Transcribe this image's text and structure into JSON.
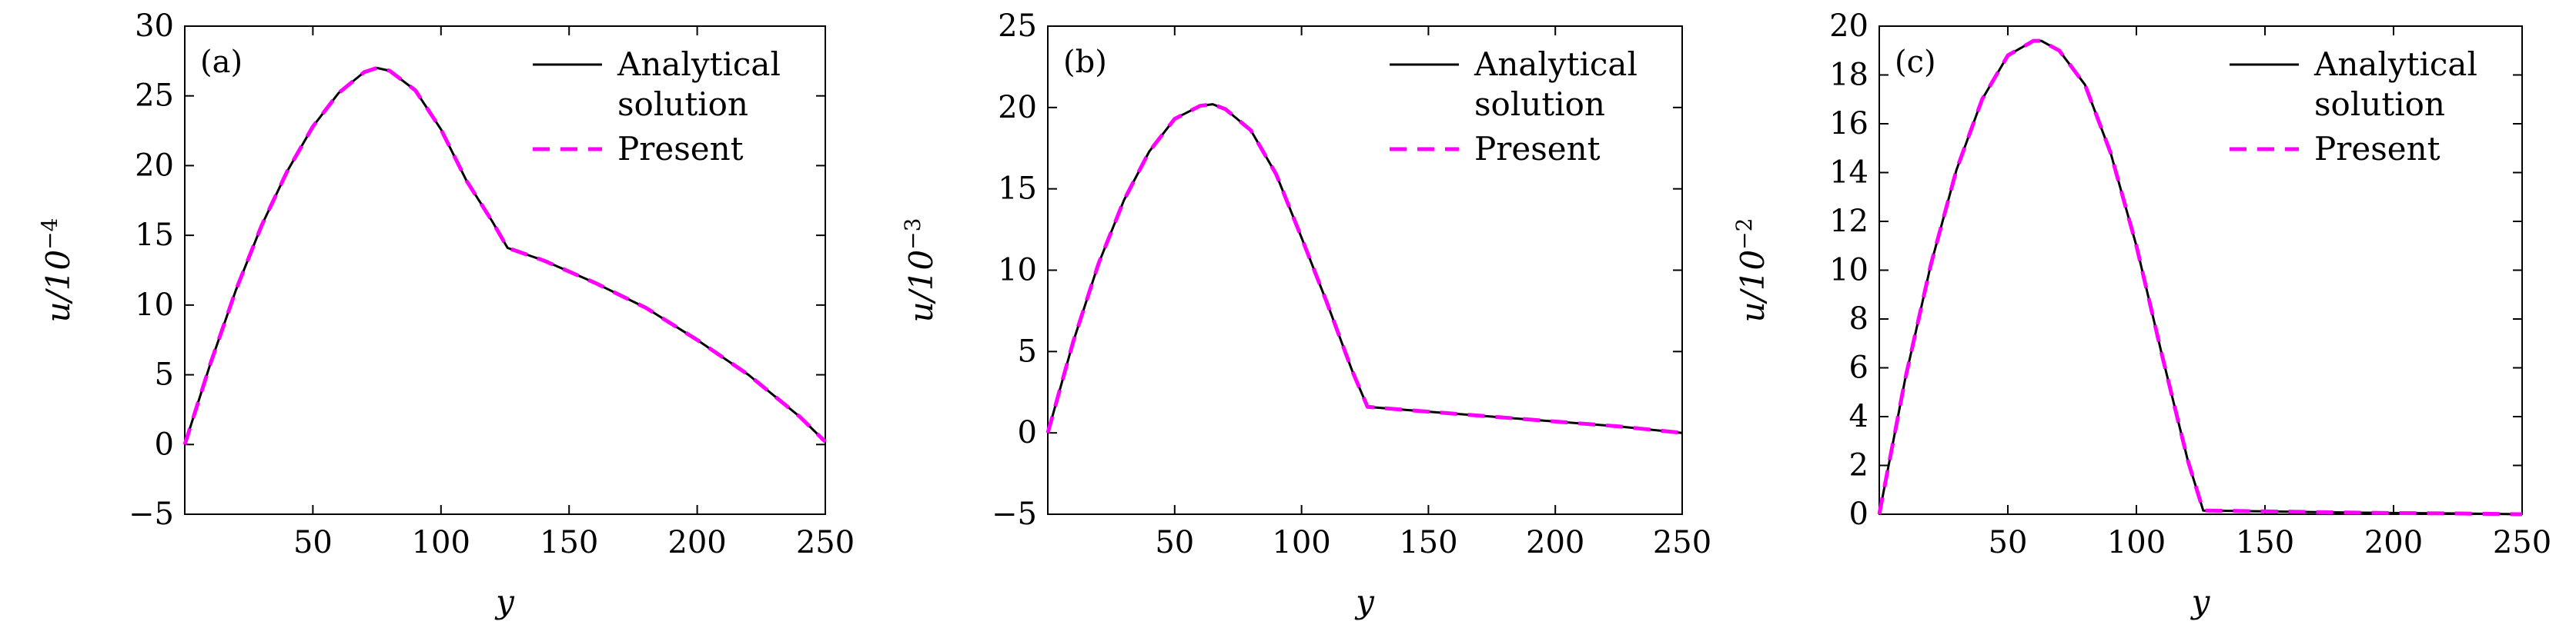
{
  "chart_data": [
    {
      "type": "line",
      "panel_label": "(a)",
      "xlabel": "y",
      "ylabel_base": "u/10",
      "ylabel_exp": "−4",
      "xlim": [
        0,
        250
      ],
      "ylim": [
        -5,
        30
      ],
      "x_ticks": [
        50,
        100,
        150,
        200,
        250
      ],
      "y_ticks": [
        -5,
        0,
        5,
        10,
        15,
        20,
        25,
        30
      ],
      "y_tick_labels": [
        "−5",
        "0",
        "5",
        "10",
        "15",
        "20",
        "25",
        "30"
      ],
      "legend": {
        "position": "top-right",
        "entries": [
          "Analytical\nsolution",
          "Present"
        ]
      },
      "series": [
        {
          "name": "Analytical solution",
          "color": "#000000",
          "dash": "solid",
          "x": [
            0,
            10,
            20,
            30,
            40,
            50,
            60,
            70,
            75,
            80,
            90,
            100,
            110,
            120,
            126,
            140,
            160,
            180,
            200,
            220,
            240,
            250
          ],
          "y": [
            0,
            5.8,
            11.1,
            15.7,
            19.6,
            22.8,
            25.2,
            26.7,
            27.0,
            26.8,
            25.4,
            22.6,
            18.9,
            16.0,
            14.1,
            13.2,
            11.6,
            9.8,
            7.5,
            5.0,
            2.0,
            0.2
          ]
        },
        {
          "name": "Present",
          "color": "#ff00ff",
          "dash": "dashed",
          "x": [
            0,
            10,
            20,
            30,
            40,
            50,
            60,
            70,
            75,
            80,
            90,
            100,
            110,
            120,
            126,
            140,
            160,
            180,
            200,
            220,
            240,
            250
          ],
          "y": [
            0,
            5.8,
            11.1,
            15.7,
            19.6,
            22.8,
            25.2,
            26.7,
            27.0,
            26.8,
            25.4,
            22.6,
            18.9,
            16.0,
            14.1,
            13.2,
            11.6,
            9.8,
            7.5,
            5.0,
            2.0,
            0.2
          ]
        }
      ]
    },
    {
      "type": "line",
      "panel_label": "(b)",
      "xlabel": "y",
      "ylabel_base": "u/10",
      "ylabel_exp": "−3",
      "xlim": [
        0,
        250
      ],
      "ylim": [
        -5,
        25
      ],
      "x_ticks": [
        50,
        100,
        150,
        200,
        250
      ],
      "y_ticks": [
        -5,
        0,
        5,
        10,
        15,
        20,
        25
      ],
      "y_tick_labels": [
        "−5",
        "0",
        "5",
        "10",
        "15",
        "20",
        "25"
      ],
      "legend": {
        "position": "top-right",
        "entries": [
          "Analytical\nsolution",
          "Present"
        ]
      },
      "series": [
        {
          "name": "Analytical solution",
          "color": "#000000",
          "dash": "solid",
          "x": [
            0,
            10,
            20,
            30,
            40,
            50,
            60,
            65,
            70,
            80,
            90,
            100,
            110,
            120,
            126,
            150,
            175,
            200,
            225,
            250
          ],
          "y": [
            0,
            5.6,
            10.4,
            14.3,
            17.3,
            19.3,
            20.1,
            20.2,
            19.9,
            18.6,
            15.9,
            12.0,
            8.0,
            3.8,
            1.6,
            1.3,
            1.0,
            0.7,
            0.4,
            0.0
          ]
        },
        {
          "name": "Present",
          "color": "#ff00ff",
          "dash": "dashed",
          "x": [
            0,
            10,
            20,
            30,
            40,
            50,
            60,
            65,
            70,
            80,
            90,
            100,
            110,
            120,
            126,
            150,
            175,
            200,
            225,
            250
          ],
          "y": [
            0,
            5.6,
            10.4,
            14.3,
            17.3,
            19.3,
            20.1,
            20.2,
            19.9,
            18.6,
            15.9,
            12.0,
            8.0,
            3.8,
            1.6,
            1.3,
            1.0,
            0.7,
            0.4,
            0.0
          ]
        }
      ]
    },
    {
      "type": "line",
      "panel_label": "(c)",
      "xlabel": "y",
      "ylabel_base": "u/10",
      "ylabel_exp": "−2",
      "xlim": [
        0,
        250
      ],
      "ylim": [
        0,
        20
      ],
      "x_ticks": [
        50,
        100,
        150,
        200,
        250
      ],
      "y_ticks": [
        0,
        2,
        4,
        6,
        8,
        10,
        12,
        14,
        16,
        18,
        20
      ],
      "y_tick_labels": [
        "0",
        "2",
        "4",
        "6",
        "8",
        "10",
        "12",
        "14",
        "16",
        "18",
        "20"
      ],
      "legend": {
        "position": "top-right",
        "entries": [
          "Analytical\nsolution",
          "Present"
        ]
      },
      "series": [
        {
          "name": "Analytical solution",
          "color": "#000000",
          "dash": "solid",
          "x": [
            0,
            10,
            20,
            30,
            40,
            50,
            60,
            63,
            70,
            80,
            90,
            100,
            110,
            120,
            126,
            150,
            175,
            200,
            225,
            250
          ],
          "y": [
            0,
            5.5,
            10.2,
            14.1,
            17.0,
            18.8,
            19.4,
            19.4,
            19.0,
            17.6,
            14.8,
            11.0,
            6.5,
            2.2,
            0.15,
            0.12,
            0.08,
            0.05,
            0.03,
            0.0
          ]
        },
        {
          "name": "Present",
          "color": "#ff00ff",
          "dash": "dashed",
          "x": [
            0,
            10,
            20,
            30,
            40,
            50,
            60,
            63,
            70,
            80,
            90,
            100,
            110,
            120,
            126,
            150,
            175,
            200,
            225,
            250
          ],
          "y": [
            0,
            5.5,
            10.2,
            14.1,
            17.0,
            18.8,
            19.4,
            19.4,
            19.0,
            17.6,
            14.8,
            11.0,
            6.5,
            2.2,
            0.15,
            0.12,
            0.08,
            0.05,
            0.03,
            0.0
          ]
        }
      ]
    }
  ]
}
